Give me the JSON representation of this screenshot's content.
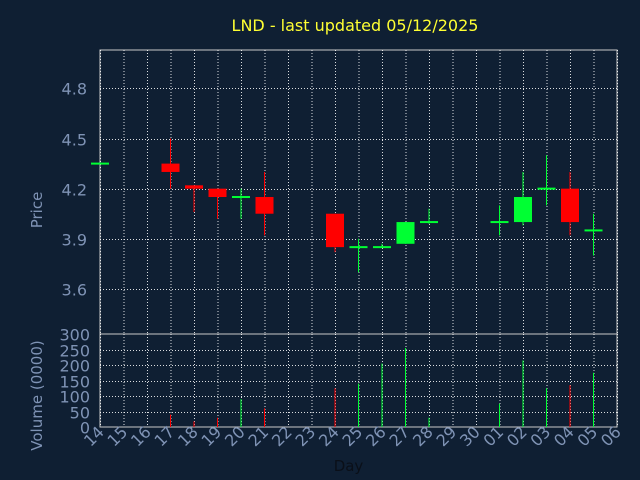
{
  "title": "LND - last updated 05/12/2025",
  "colors": {
    "background": "#0f1f33",
    "title": "#ffff33",
    "axis_text": "#7f93b5",
    "up": "#00ff33",
    "down": "#ff0000",
    "grid": "#ffffff"
  },
  "chart_data": [
    {
      "type": "candlestick",
      "ylabel": "Price",
      "ylim": [
        3.33,
        5.03
      ],
      "yticks": [
        3.6,
        3.9,
        4.2,
        4.5,
        4.8
      ],
      "x": [
        "14",
        "15",
        "16",
        "17",
        "18",
        "19",
        "20",
        "21",
        "22",
        "23",
        "24",
        "25",
        "26",
        "27",
        "28",
        "29",
        "30",
        "01",
        "02",
        "03",
        "04",
        "05",
        "06"
      ],
      "grid": true,
      "candles": [
        {
          "day": "14",
          "open": 4.35,
          "close": 4.35,
          "high": 4.35,
          "low": 4.35
        },
        {
          "day": "17",
          "open": 4.35,
          "close": 4.3,
          "high": 4.5,
          "low": 4.2
        },
        {
          "day": "18",
          "open": 4.22,
          "close": 4.2,
          "high": 4.22,
          "low": 4.06
        },
        {
          "day": "19",
          "open": 4.2,
          "close": 4.15,
          "high": 4.2,
          "low": 4.02
        },
        {
          "day": "20",
          "open": 4.15,
          "close": 4.15,
          "high": 4.2,
          "low": 4.02
        },
        {
          "day": "21",
          "open": 4.15,
          "close": 4.05,
          "high": 4.3,
          "low": 3.92
        },
        {
          "day": "24",
          "open": 4.05,
          "close": 3.85,
          "high": 4.05,
          "low": 3.82
        },
        {
          "day": "25",
          "open": 3.85,
          "close": 3.85,
          "high": 3.9,
          "low": 3.7
        },
        {
          "day": "26",
          "open": 3.85,
          "close": 3.85,
          "high": 3.87,
          "low": 3.85
        },
        {
          "day": "27",
          "open": 3.87,
          "close": 4.0,
          "high": 4.0,
          "low": 3.87
        },
        {
          "day": "28",
          "open": 4.0,
          "close": 4.0,
          "high": 4.08,
          "low": 3.99
        },
        {
          "day": "01",
          "open": 4.0,
          "close": 4.0,
          "high": 4.1,
          "low": 3.92
        },
        {
          "day": "02",
          "open": 4.0,
          "close": 4.15,
          "high": 4.3,
          "low": 3.98
        },
        {
          "day": "03",
          "open": 4.2,
          "close": 4.2,
          "high": 4.4,
          "low": 4.1
        },
        {
          "day": "04",
          "open": 4.2,
          "close": 4.0,
          "high": 4.3,
          "low": 3.92
        },
        {
          "day": "05",
          "open": 3.95,
          "close": 3.95,
          "high": 4.05,
          "low": 3.8
        }
      ]
    },
    {
      "type": "bar",
      "ylabel": "Volume (0000)",
      "xlabel": "Day",
      "ylim": [
        0,
        300
      ],
      "yticks": [
        0,
        50,
        100,
        150,
        200,
        250,
        300
      ],
      "x": [
        "14",
        "15",
        "16",
        "17",
        "18",
        "19",
        "20",
        "21",
        "22",
        "23",
        "24",
        "25",
        "26",
        "27",
        "28",
        "29",
        "30",
        "01",
        "02",
        "03",
        "04",
        "05",
        "06"
      ],
      "grid": true,
      "bars": [
        {
          "day": "17",
          "value": 40,
          "dir": "down"
        },
        {
          "day": "18",
          "value": 18,
          "dir": "down"
        },
        {
          "day": "19",
          "value": 30,
          "dir": "down"
        },
        {
          "day": "20",
          "value": 90,
          "dir": "up"
        },
        {
          "day": "21",
          "value": 60,
          "dir": "down"
        },
        {
          "day": "24",
          "value": 125,
          "dir": "down"
        },
        {
          "day": "25",
          "value": 140,
          "dir": "up"
        },
        {
          "day": "26",
          "value": 205,
          "dir": "up"
        },
        {
          "day": "27",
          "value": 255,
          "dir": "up"
        },
        {
          "day": "28",
          "value": 30,
          "dir": "up"
        },
        {
          "day": "01",
          "value": 75,
          "dir": "up"
        },
        {
          "day": "02",
          "value": 215,
          "dir": "up"
        },
        {
          "day": "03",
          "value": 125,
          "dir": "up"
        },
        {
          "day": "04",
          "value": 135,
          "dir": "down"
        },
        {
          "day": "05",
          "value": 175,
          "dir": "up"
        }
      ]
    }
  ]
}
